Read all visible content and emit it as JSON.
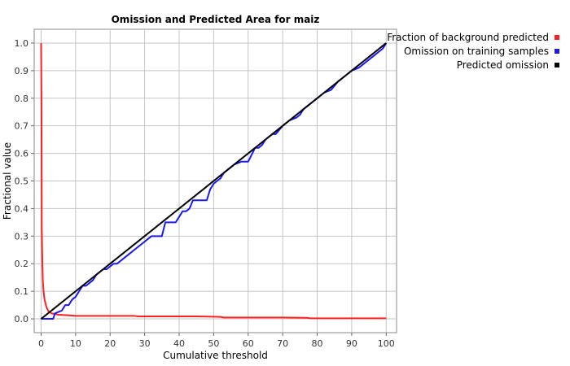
{
  "chart_data": {
    "type": "line",
    "title": "Omission and Predicted Area for maiz",
    "xlabel": "Cumulative threshold",
    "ylabel": "Fractional value",
    "xlim": [
      -2,
      103
    ],
    "ylim": [
      -0.05,
      1.05
    ],
    "xticks": [
      0,
      10,
      20,
      30,
      40,
      50,
      60,
      70,
      80,
      90,
      100
    ],
    "yticks": [
      0.0,
      0.1,
      0.2,
      0.3,
      0.4,
      0.5,
      0.6,
      0.7,
      0.8,
      0.9,
      1.0
    ],
    "grid": true,
    "legend_position": "top-right-outside",
    "series": [
      {
        "name": "Fraction of background predicted",
        "color": "#ff2020",
        "x": [
          0,
          0.1,
          0.2,
          0.3,
          0.4,
          0.5,
          0.7,
          1,
          1.5,
          2,
          3,
          5,
          8,
          10,
          15,
          20,
          25,
          27,
          28,
          35,
          40,
          45,
          50,
          52,
          53,
          60,
          70,
          77,
          78,
          90,
          100
        ],
        "y": [
          1.0,
          0.8,
          0.33,
          0.25,
          0.19,
          0.14,
          0.1,
          0.07,
          0.045,
          0.03,
          0.02,
          0.015,
          0.013,
          0.011,
          0.011,
          0.011,
          0.011,
          0.011,
          0.009,
          0.009,
          0.009,
          0.009,
          0.008,
          0.007,
          0.005,
          0.005,
          0.005,
          0.004,
          0.002,
          0.002,
          0.002
        ]
      },
      {
        "name": "Omission on training samples",
        "color": "#1a1aee",
        "x": [
          0,
          3.5,
          4,
          6,
          7,
          8,
          9,
          10,
          11,
          12,
          13,
          15,
          16,
          17,
          18,
          19,
          20,
          21,
          22,
          24,
          25,
          26,
          27,
          28,
          29,
          30,
          31,
          32,
          34,
          35,
          36,
          37,
          38,
          39,
          40,
          41,
          42,
          43,
          44,
          45,
          46,
          48,
          49,
          50,
          51,
          52,
          53,
          55,
          56,
          58,
          60,
          62,
          63,
          64,
          65,
          66,
          67,
          68,
          70,
          72,
          74,
          75,
          76,
          78,
          80,
          82,
          84,
          86,
          88,
          90,
          92,
          94,
          96,
          98,
          99,
          100
        ],
        "y": [
          0,
          0,
          0.02,
          0.03,
          0.05,
          0.05,
          0.07,
          0.08,
          0.1,
          0.12,
          0.12,
          0.14,
          0.16,
          0.17,
          0.18,
          0.18,
          0.19,
          0.2,
          0.2,
          0.22,
          0.23,
          0.24,
          0.25,
          0.26,
          0.27,
          0.28,
          0.29,
          0.3,
          0.3,
          0.3,
          0.35,
          0.35,
          0.35,
          0.35,
          0.37,
          0.39,
          0.39,
          0.4,
          0.43,
          0.43,
          0.43,
          0.43,
          0.47,
          0.49,
          0.5,
          0.51,
          0.53,
          0.55,
          0.56,
          0.57,
          0.57,
          0.62,
          0.62,
          0.63,
          0.65,
          0.66,
          0.67,
          0.67,
          0.7,
          0.72,
          0.73,
          0.74,
          0.76,
          0.78,
          0.8,
          0.82,
          0.83,
          0.86,
          0.88,
          0.9,
          0.91,
          0.93,
          0.95,
          0.97,
          0.98,
          1.0
        ]
      },
      {
        "name": "Predicted omission",
        "color": "#000000",
        "x": [
          0,
          100
        ],
        "y": [
          0,
          1
        ]
      }
    ]
  }
}
